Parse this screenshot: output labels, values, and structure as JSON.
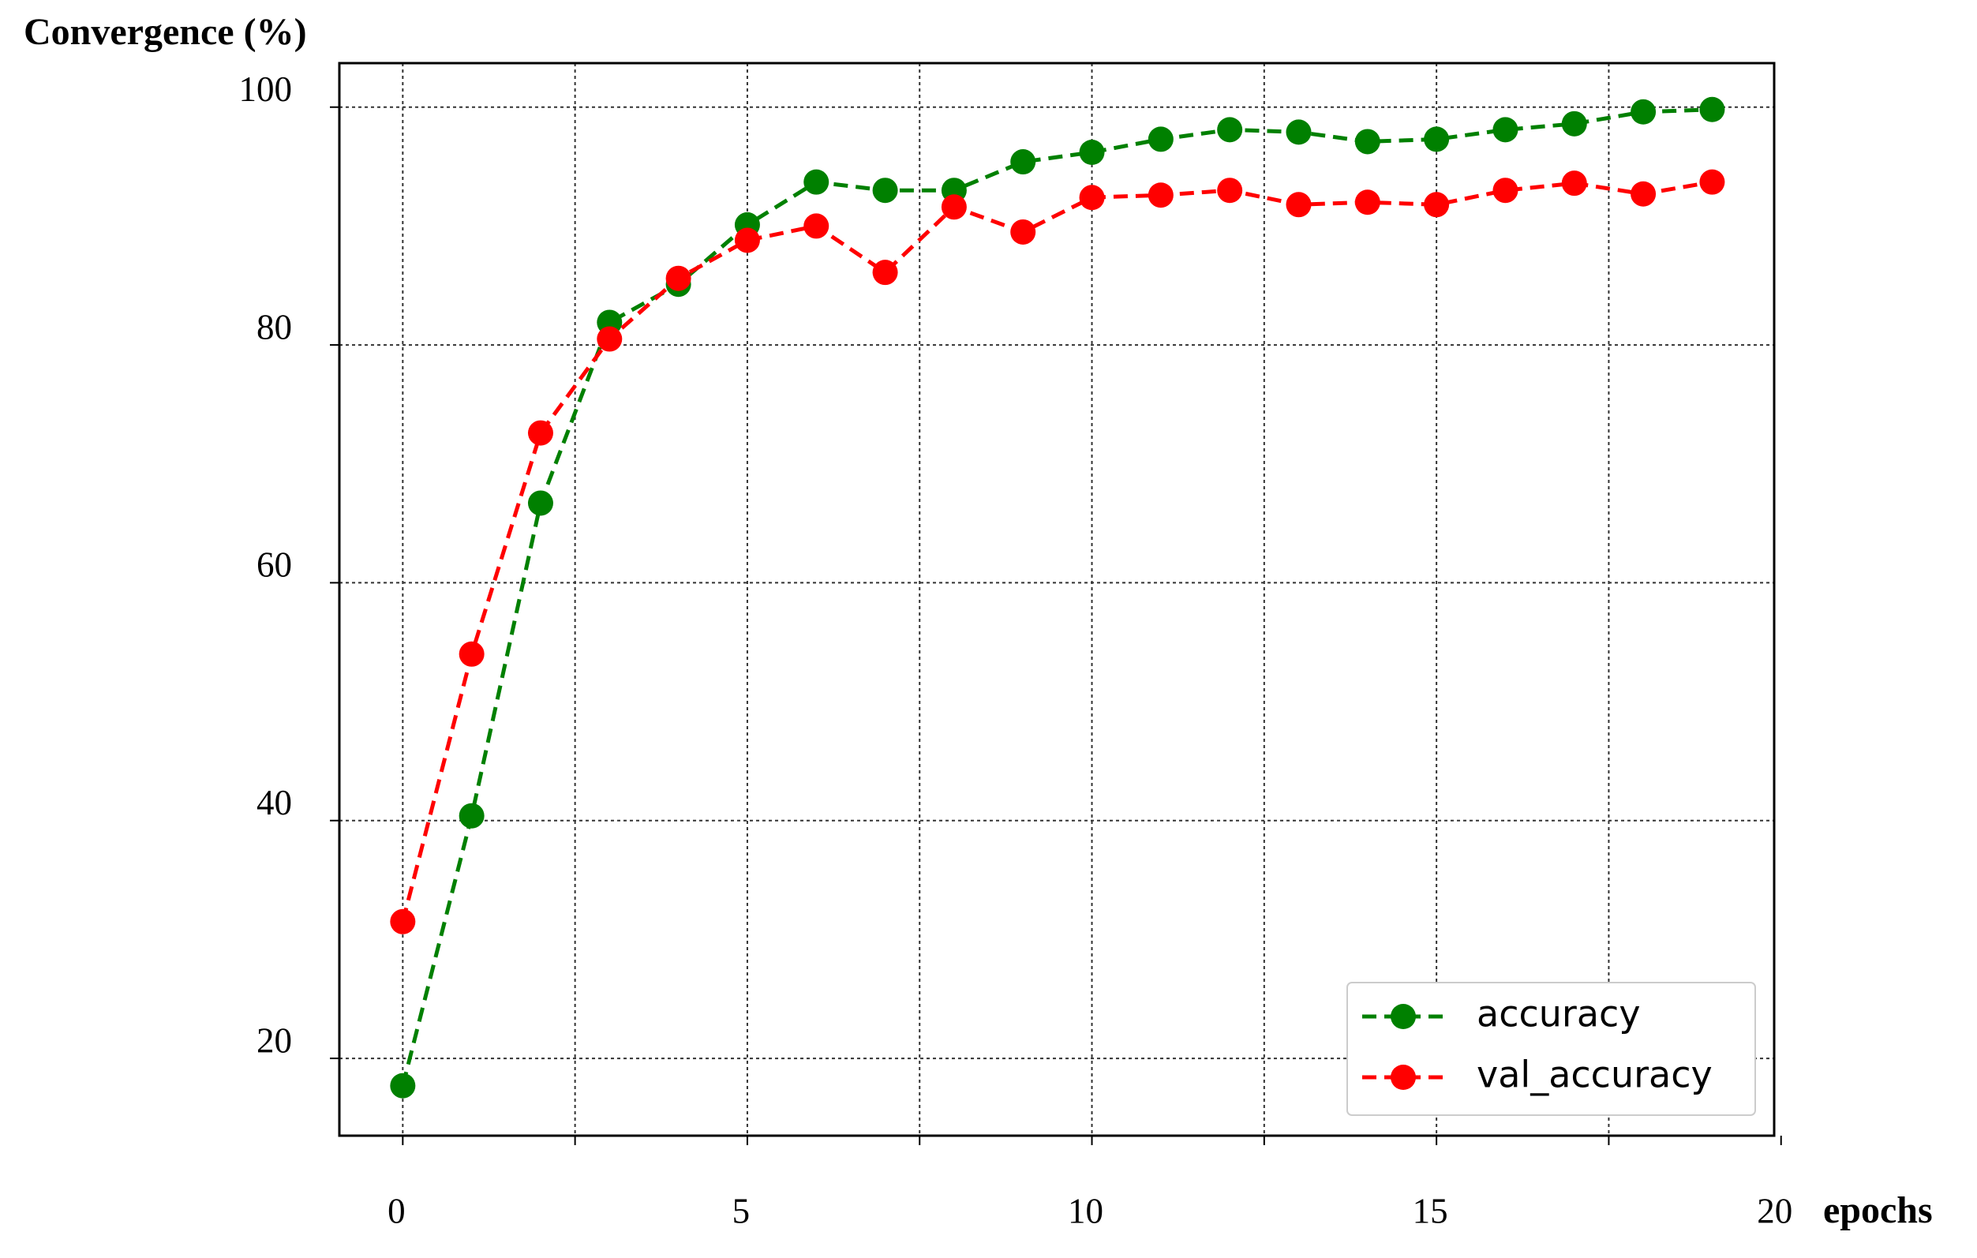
{
  "chart_data": {
    "type": "line",
    "y_axis_label": "Convergence (%)",
    "x_axis_label": "epochs",
    "x": [
      0,
      1,
      2,
      3,
      4,
      5,
      6,
      7,
      8,
      9,
      10,
      11,
      12,
      13,
      14,
      15,
      16,
      17,
      18,
      19
    ],
    "series": [
      {
        "name": "accuracy",
        "color": "#008000",
        "values": [
          17.7,
          40.4,
          66.7,
          81.9,
          85.1,
          90.1,
          93.7,
          93.0,
          93.0,
          95.4,
          96.2,
          97.3,
          98.1,
          97.9,
          97.1,
          97.3,
          98.1,
          98.6,
          99.6,
          99.8
        ]
      },
      {
        "name": "val_accuracy",
        "color": "#ff0000",
        "values": [
          31.5,
          54.0,
          72.6,
          80.5,
          85.6,
          88.8,
          90.0,
          86.1,
          91.6,
          89.5,
          92.4,
          92.6,
          93.0,
          91.8,
          92.0,
          91.8,
          93.0,
          93.6,
          92.7,
          93.7
        ]
      }
    ],
    "xlim": [
      -0.92,
      19.9
    ],
    "ylim": [
      13.5,
      103.7
    ],
    "xticks": [
      0,
      5,
      10,
      15,
      20
    ],
    "x_minor_ticks": [
      2.5,
      7.5,
      12.5,
      17.5
    ],
    "yticks": [
      20,
      40,
      60,
      80,
      100
    ],
    "grid": true,
    "legend": "lower right"
  }
}
